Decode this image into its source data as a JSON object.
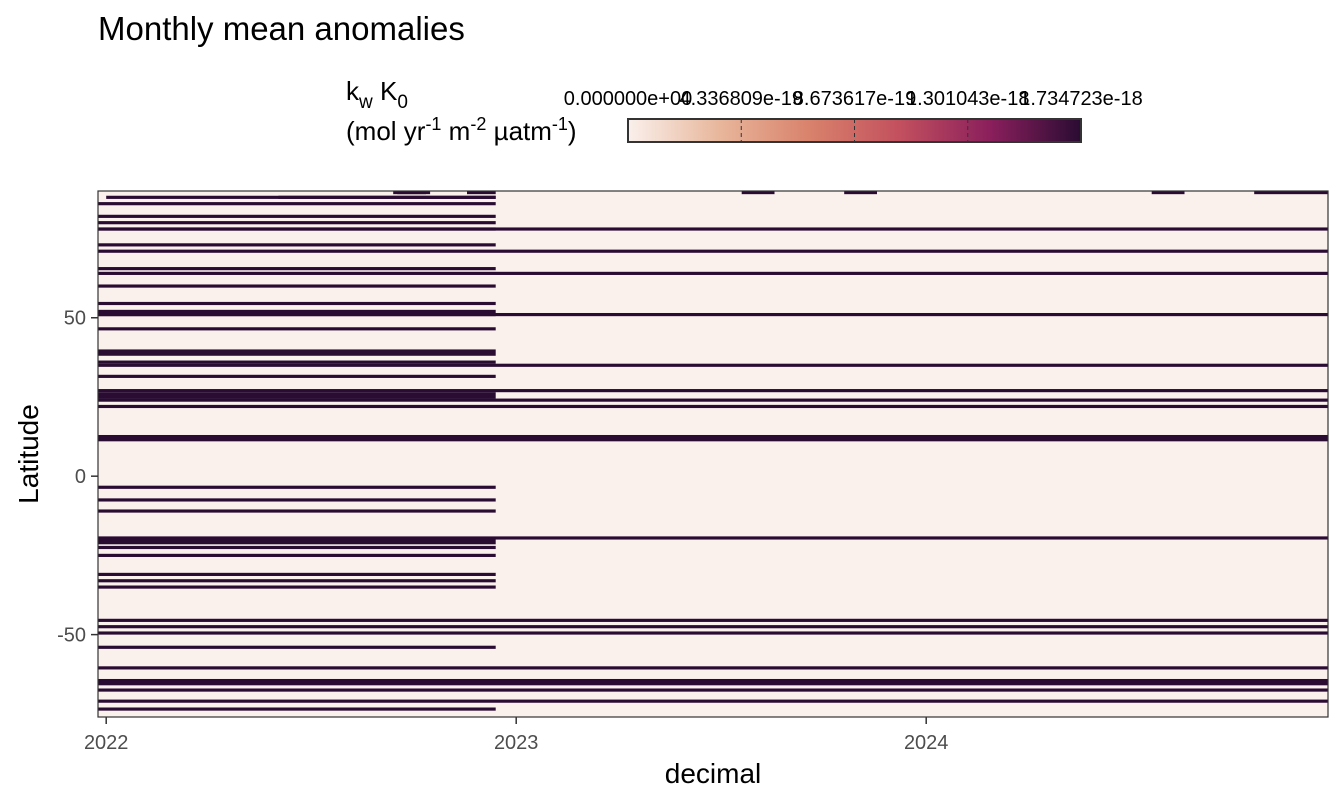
{
  "chart_data": {
    "type": "heatmap",
    "title": "Monthly mean anomalies",
    "xlabel": "decimal",
    "ylabel": "Latitude",
    "xlim": [
      2021.98,
      2024.98
    ],
    "ylim": [
      -76,
      90
    ],
    "x_ticks": [
      2022,
      2023,
      2024
    ],
    "x_tick_labels": [
      "2022",
      "2023",
      "2024"
    ],
    "y_ticks": [
      -50,
      0,
      50
    ],
    "y_tick_labels": [
      "-50",
      "0",
      "50"
    ],
    "grid": false,
    "legend": {
      "position": "top",
      "title_line1": "k",
      "title_sub1": "w",
      "title_mid": " K",
      "title_sub2": "0",
      "title_line2": "(mol yr-1 m-2 µatm-1)",
      "title_line2_parts": [
        "(mol yr",
        "-1",
        " m",
        "-2",
        " µatm",
        "-1",
        ")"
      ],
      "colorbar_labels": [
        "0.000000e+00",
        "4.336809e-19",
        "8.673617e-19",
        "1.301043e-18",
        "1.734723e-18"
      ],
      "colorbar_range": [
        0,
        1.734723e-18
      ],
      "colors": [
        "#faf0ec",
        "#e8b79c",
        "#d9826c",
        "#c2505e",
        "#8a1f5c",
        "#2a0c33"
      ]
    },
    "background_color": "#faf0ec",
    "band_color": "#2a0c33",
    "segments": [
      {
        "x": [
          2022.0,
          2022.95
        ],
        "bands": [
          [
            87.5,
            88.5
          ]
        ]
      },
      {
        "x": [
          2021.98,
          2022.95
        ],
        "bands": [
          [
            85.5,
            86.5
          ],
          [
            81.5,
            82.5
          ],
          [
            79.5,
            80.5
          ],
          [
            77.5,
            78.5
          ],
          [
            72.5,
            73.5
          ],
          [
            65,
            66
          ],
          [
            59.5,
            60.5
          ],
          [
            54,
            55
          ],
          [
            50.5,
            52.5
          ],
          [
            46,
            47
          ],
          [
            38,
            40
          ],
          [
            35.5,
            36.5
          ],
          [
            31,
            32
          ],
          [
            24.5,
            26.5
          ],
          [
            -8,
            -7
          ],
          [
            -11.5,
            -10.5
          ],
          [
            -25.5,
            -24.5
          ],
          [
            -31.5,
            -30.5
          ],
          [
            -33.5,
            -32.5
          ],
          [
            -35.5,
            -34.5
          ],
          [
            -54.5,
            -53.5
          ],
          [
            -74,
            -73
          ]
        ]
      },
      {
        "x": [
          2021.98,
          2024.98
        ],
        "bands": [
          [
            77.5,
            78.5
          ],
          [
            70.5,
            71.5
          ],
          [
            63.5,
            64.5
          ],
          [
            50.5,
            51.5
          ],
          [
            34.5,
            35.5
          ],
          [
            26.5,
            27.5
          ],
          [
            23.5,
            24.5
          ],
          [
            21.5,
            22.5
          ],
          [
            11,
            13
          ],
          [
            -20,
            -19
          ],
          [
            -46,
            -45
          ],
          [
            -48,
            -47
          ],
          [
            -50,
            -49
          ],
          [
            -61,
            -60
          ],
          [
            -66,
            -64
          ],
          [
            -68,
            -67
          ],
          [
            -71.5,
            -70.5
          ]
        ]
      },
      {
        "x": [
          2021.98,
          2022.95
        ],
        "bands": [
          [
            -4,
            -3
          ],
          [
            -21.5,
            -19.5
          ],
          [
            -23,
            -22
          ]
        ]
      },
      {
        "x": [
          2022.42,
          2022.95
        ],
        "bands": [
          [
            87.5,
            88.5
          ]
        ]
      },
      {
        "x": [
          2022.7,
          2022.78
        ],
        "bands": [
          [
            89,
            90
          ]
        ]
      },
      {
        "x": [
          2022.88,
          2022.95
        ],
        "bands": [
          [
            89,
            90
          ]
        ]
      },
      {
        "x": [
          2022.71,
          2022.79
        ],
        "bands": [
          [
            89,
            90
          ]
        ]
      },
      {
        "x": [
          2023.55,
          2023.63
        ],
        "bands": [
          [
            89,
            90
          ]
        ]
      },
      {
        "x": [
          2023.8,
          2023.88
        ],
        "bands": [
          [
            89,
            90
          ]
        ]
      },
      {
        "x": [
          2024.55,
          2024.63
        ],
        "bands": [
          [
            89,
            90
          ]
        ]
      },
      {
        "x": [
          2024.8,
          2024.98
        ],
        "bands": [
          [
            89,
            90
          ]
        ]
      }
    ]
  }
}
